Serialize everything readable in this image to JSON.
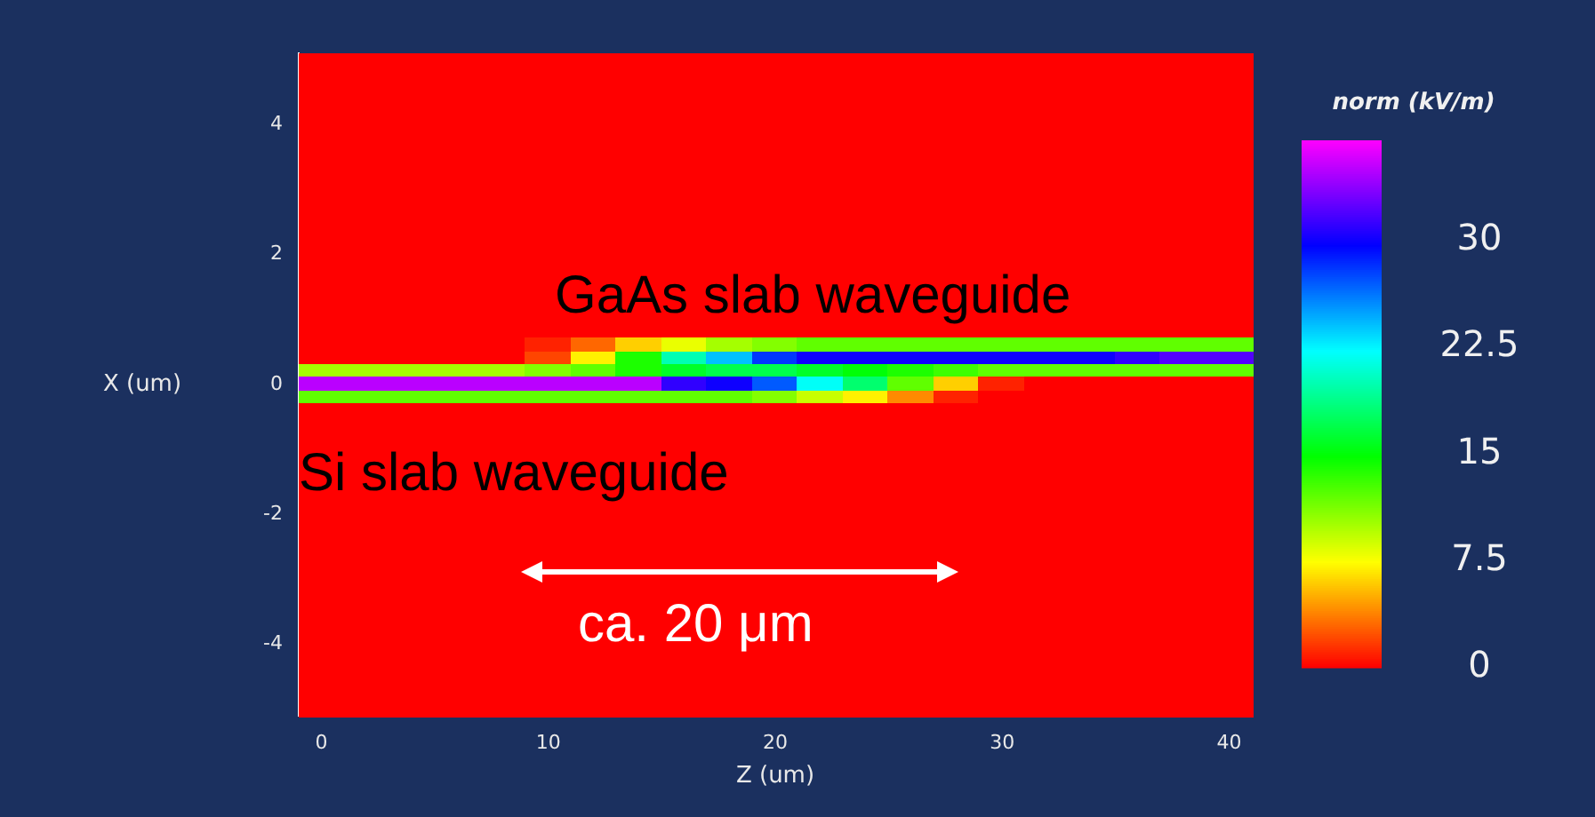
{
  "chart_data": {
    "type": "heatmap",
    "xlabel": "Z (um)",
    "ylabel": "X (um)",
    "clabel": "norm (kV/m)",
    "annotations": [
      "GaAs slab waveguide",
      "Si slab waveguide",
      "ca. 20 μm"
    ],
    "categories": [
      "0",
      null,
      null,
      null,
      null,
      "10",
      null,
      null,
      null,
      null,
      "20",
      null,
      null,
      null,
      null,
      "30",
      null,
      null,
      null,
      null,
      "40"
    ],
    "y_categories": [
      null,
      null,
      null,
      null,
      null,
      "4",
      null,
      null,
      null,
      null,
      null,
      null,
      null,
      null,
      null,
      "2",
      null,
      null,
      null,
      null,
      null,
      null,
      null,
      null,
      null,
      "0",
      null,
      null,
      null,
      null,
      null,
      null,
      null,
      null,
      null,
      "-2",
      null,
      null,
      null,
      null,
      null,
      null,
      null,
      null,
      null,
      "-4",
      null,
      null,
      null,
      null,
      null
    ],
    "clim": [
      0,
      37
    ],
    "cticks": [
      0,
      7.5,
      15,
      22.5,
      30
    ],
    "cells": [
      [
        0,
        0,
        0,
        0,
        0,
        0,
        0,
        0,
        0,
        0,
        0,
        0,
        0,
        0,
        0,
        0,
        0,
        0,
        0,
        0,
        0
      ],
      [
        0,
        0,
        0,
        0,
        0,
        0,
        0,
        0,
        0,
        0,
        0,
        0,
        0,
        0,
        0,
        0,
        0,
        0,
        0,
        0,
        0
      ],
      [
        0,
        0,
        0,
        0,
        0,
        0,
        0,
        0,
        0,
        0,
        0,
        0,
        0,
        0,
        0,
        0,
        0,
        0,
        0,
        0,
        0
      ],
      [
        0,
        0,
        0,
        0,
        0,
        0,
        0,
        0,
        0,
        0,
        0,
        0,
        0,
        0,
        0,
        0,
        0,
        0,
        0,
        0,
        0
      ],
      [
        0,
        0,
        0,
        0,
        0,
        0,
        0,
        0,
        0,
        0,
        0,
        0,
        0,
        0,
        0,
        0,
        0,
        0,
        0,
        0,
        0
      ],
      [
        0,
        0,
        0,
        0,
        0,
        0,
        0,
        0,
        0,
        0,
        0,
        0,
        0,
        0,
        0,
        0,
        0,
        0,
        0,
        0,
        0
      ],
      [
        0,
        0,
        0,
        0,
        0,
        0,
        0,
        0,
        0,
        0,
        0,
        0,
        0,
        0,
        0,
        0,
        0,
        0,
        0,
        0,
        0
      ],
      [
        0,
        0,
        0,
        0,
        0,
        0,
        0,
        0,
        0,
        0,
        0,
        0,
        0,
        0,
        0,
        0,
        0,
        0,
        0,
        0,
        0
      ],
      [
        0,
        0,
        0,
        0,
        0,
        0,
        0,
        0,
        0,
        0,
        0,
        0,
        0,
        0,
        0,
        0,
        0,
        0,
        0,
        0,
        0
      ],
      [
        0,
        0,
        0,
        0,
        0,
        0,
        0,
        0,
        0,
        0,
        0,
        0,
        0,
        0,
        0,
        0,
        0,
        0,
        0,
        0,
        0
      ],
      [
        0,
        0,
        0,
        0,
        0,
        0,
        0,
        0,
        0,
        0,
        0,
        0,
        0,
        0,
        0,
        0,
        0,
        0,
        0,
        0,
        0
      ],
      [
        0,
        0,
        0,
        0,
        0,
        0,
        0,
        0,
        0,
        0,
        0,
        0,
        0,
        0,
        0,
        0,
        0,
        0,
        0,
        0,
        0
      ],
      [
        0,
        0,
        0,
        0,
        0,
        0,
        0,
        0,
        0,
        0,
        0,
        0,
        0,
        0,
        0,
        0,
        0,
        0,
        0,
        0,
        0
      ],
      [
        0,
        0,
        0,
        0,
        0,
        0,
        0,
        0,
        0,
        0,
        0,
        0,
        0,
        0,
        0,
        0,
        0,
        0,
        0,
        0,
        0
      ],
      [
        0,
        0,
        0,
        0,
        0,
        0,
        0,
        0,
        0,
        0,
        0,
        0,
        0,
        0,
        0,
        0,
        0,
        0,
        0,
        0,
        0
      ],
      [
        0,
        0,
        0,
        0,
        0,
        0,
        0,
        0,
        0,
        0,
        0,
        0,
        0,
        0,
        0,
        0,
        0,
        0,
        0,
        0,
        0
      ],
      [
        0,
        0,
        0,
        0,
        0,
        0,
        0,
        0,
        0,
        0,
        0,
        0,
        0,
        0,
        0,
        0,
        0,
        0,
        0,
        0,
        0
      ],
      [
        0,
        0,
        0,
        0,
        0,
        0,
        0,
        0,
        0,
        0,
        0,
        0,
        0,
        0,
        0,
        0,
        0,
        0,
        0,
        0,
        0
      ],
      [
        0,
        0,
        0,
        0,
        0,
        0,
        0,
        0,
        0,
        0,
        0,
        0,
        0,
        0,
        0,
        0,
        0,
        0,
        0,
        0,
        0
      ],
      [
        0,
        0,
        0,
        0,
        0,
        0,
        0,
        0,
        0,
        0,
        0,
        0,
        0,
        0,
        0,
        0,
        0,
        0,
        0,
        0,
        0
      ],
      [
        0,
        0,
        0,
        0,
        0,
        0,
        0,
        0,
        0,
        0,
        0,
        0,
        0,
        0,
        0,
        0,
        0,
        0,
        0,
        0,
        0
      ],
      [
        0,
        0,
        0,
        0,
        0,
        0,
        0,
        0,
        0,
        0,
        0,
        0,
        0,
        0,
        0,
        0,
        0,
        0,
        0,
        0,
        0
      ],
      [
        0,
        0,
        0,
        0,
        0,
        1,
        3,
        6,
        8,
        10,
        11,
        12,
        12,
        12,
        12,
        12,
        12,
        12,
        12,
        12,
        12
      ],
      [
        0,
        0,
        0,
        0,
        0,
        2,
        7,
        14,
        20,
        24,
        28,
        30,
        30,
        30,
        30,
        30,
        30,
        30,
        31,
        32,
        32
      ],
      [
        10,
        10,
        10,
        10,
        10,
        11,
        12,
        14,
        16,
        17,
        17,
        16,
        15,
        14,
        13,
        12,
        12,
        12,
        12,
        12,
        12
      ],
      [
        35,
        35,
        35,
        35,
        35,
        35,
        35,
        35,
        31,
        30,
        27,
        22,
        18,
        12,
        6,
        1,
        0,
        0,
        0,
        0,
        0
      ],
      [
        12,
        12,
        12,
        12,
        12,
        12,
        12,
        12,
        12,
        12,
        11,
        9,
        7,
        4,
        1,
        0,
        0,
        0,
        0,
        0,
        0
      ],
      [
        0,
        0,
        0,
        0,
        0,
        0,
        0,
        0,
        0,
        0,
        0,
        0,
        0,
        0,
        0,
        0,
        0,
        0,
        0,
        0,
        0
      ],
      [
        0,
        0,
        0,
        0,
        0,
        0,
        0,
        0,
        0,
        0,
        0,
        0,
        0,
        0,
        0,
        0,
        0,
        0,
        0,
        0,
        0
      ],
      [
        0,
        0,
        0,
        0,
        0,
        0,
        0,
        0,
        0,
        0,
        0,
        0,
        0,
        0,
        0,
        0,
        0,
        0,
        0,
        0,
        0
      ],
      [
        0,
        0,
        0,
        0,
        0,
        0,
        0,
        0,
        0,
        0,
        0,
        0,
        0,
        0,
        0,
        0,
        0,
        0,
        0,
        0,
        0
      ],
      [
        0,
        0,
        0,
        0,
        0,
        0,
        0,
        0,
        0,
        0,
        0,
        0,
        0,
        0,
        0,
        0,
        0,
        0,
        0,
        0,
        0
      ],
      [
        0,
        0,
        0,
        0,
        0,
        0,
        0,
        0,
        0,
        0,
        0,
        0,
        0,
        0,
        0,
        0,
        0,
        0,
        0,
        0,
        0
      ],
      [
        0,
        0,
        0,
        0,
        0,
        0,
        0,
        0,
        0,
        0,
        0,
        0,
        0,
        0,
        0,
        0,
        0,
        0,
        0,
        0,
        0
      ],
      [
        0,
        0,
        0,
        0,
        0,
        0,
        0,
        0,
        0,
        0,
        0,
        0,
        0,
        0,
        0,
        0,
        0,
        0,
        0,
        0,
        0
      ],
      [
        0,
        0,
        0,
        0,
        0,
        0,
        0,
        0,
        0,
        0,
        0,
        0,
        0,
        0,
        0,
        0,
        0,
        0,
        0,
        0,
        0
      ],
      [
        0,
        0,
        0,
        0,
        0,
        0,
        0,
        0,
        0,
        0,
        0,
        0,
        0,
        0,
        0,
        0,
        0,
        0,
        0,
        0,
        0
      ],
      [
        0,
        0,
        0,
        0,
        0,
        0,
        0,
        0,
        0,
        0,
        0,
        0,
        0,
        0,
        0,
        0,
        0,
        0,
        0,
        0,
        0
      ],
      [
        0,
        0,
        0,
        0,
        0,
        0,
        0,
        0,
        0,
        0,
        0,
        0,
        0,
        0,
        0,
        0,
        0,
        0,
        0,
        0,
        0
      ],
      [
        0,
        0,
        0,
        0,
        0,
        0,
        0,
        0,
        0,
        0,
        0,
        0,
        0,
        0,
        0,
        0,
        0,
        0,
        0,
        0,
        0
      ],
      [
        0,
        0,
        0,
        0,
        0,
        0,
        0,
        0,
        0,
        0,
        0,
        0,
        0,
        0,
        0,
        0,
        0,
        0,
        0,
        0,
        0
      ],
      [
        0,
        0,
        0,
        0,
        0,
        0,
        0,
        0,
        0,
        0,
        0,
        0,
        0,
        0,
        0,
        0,
        0,
        0,
        0,
        0,
        0
      ],
      [
        0,
        0,
        0,
        0,
        0,
        0,
        0,
        0,
        0,
        0,
        0,
        0,
        0,
        0,
        0,
        0,
        0,
        0,
        0,
        0,
        0
      ],
      [
        0,
        0,
        0,
        0,
        0,
        0,
        0,
        0,
        0,
        0,
        0,
        0,
        0,
        0,
        0,
        0,
        0,
        0,
        0,
        0,
        0
      ],
      [
        0,
        0,
        0,
        0,
        0,
        0,
        0,
        0,
        0,
        0,
        0,
        0,
        0,
        0,
        0,
        0,
        0,
        0,
        0,
        0,
        0
      ],
      [
        0,
        0,
        0,
        0,
        0,
        0,
        0,
        0,
        0,
        0,
        0,
        0,
        0,
        0,
        0,
        0,
        0,
        0,
        0,
        0,
        0
      ],
      [
        0,
        0,
        0,
        0,
        0,
        0,
        0,
        0,
        0,
        0,
        0,
        0,
        0,
        0,
        0,
        0,
        0,
        0,
        0,
        0,
        0
      ],
      [
        0,
        0,
        0,
        0,
        0,
        0,
        0,
        0,
        0,
        0,
        0,
        0,
        0,
        0,
        0,
        0,
        0,
        0,
        0,
        0,
        0
      ],
      [
        0,
        0,
        0,
        0,
        0,
        0,
        0,
        0,
        0,
        0,
        0,
        0,
        0,
        0,
        0,
        0,
        0,
        0,
        0,
        0,
        0
      ],
      [
        0,
        0,
        0,
        0,
        0,
        0,
        0,
        0,
        0,
        0,
        0,
        0,
        0,
        0,
        0,
        0,
        0,
        0,
        0,
        0,
        0
      ],
      [
        0,
        0,
        0,
        0,
        0,
        0,
        0,
        0,
        0,
        0,
        0,
        0,
        0,
        0,
        0,
        0,
        0,
        0,
        0,
        0,
        0
      ]
    ]
  }
}
